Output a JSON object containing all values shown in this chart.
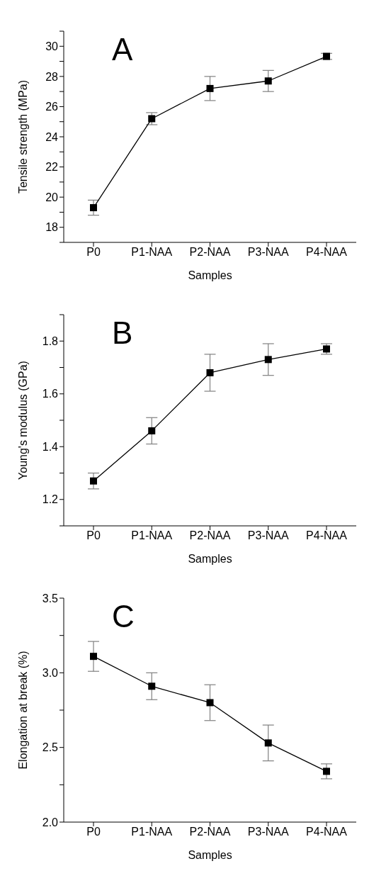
{
  "chart_data": [
    {
      "type": "line",
      "title": "A",
      "xlabel": "Samples",
      "ylabel": "Tensile strength (MPa)",
      "categories": [
        "P0",
        "P1-NAA",
        "P2-NAA",
        "P3-NAA",
        "P4-NAA"
      ],
      "series": [
        {
          "color": "#000000",
          "values": [
            19.3,
            25.2,
            27.2,
            27.7,
            29.33
          ],
          "errors": [
            0.5,
            0.4,
            0.8,
            0.7,
            0.2
          ]
        }
      ],
      "ylim": [
        17,
        31
      ],
      "yticks": [
        {
          "value": 17,
          "label": null
        },
        18,
        {
          "value": 19,
          "label": null
        },
        20,
        {
          "value": 21,
          "label": null
        },
        22,
        {
          "value": 23,
          "label": null
        },
        24,
        {
          "value": 25,
          "label": null
        },
        26,
        {
          "value": 27,
          "label": null
        },
        28,
        {
          "value": 29,
          "label": null
        },
        30,
        {
          "value": 31,
          "label": null
        }
      ],
      "marker": "square",
      "grid": false,
      "legend": false
    },
    {
      "type": "line",
      "title": "B",
      "xlabel": "Samples",
      "ylabel": "Young's modulus (GPa)",
      "categories": [
        "P0",
        "P1-NAA",
        "P2-NAA",
        "P3-NAA",
        "P4-NAA"
      ],
      "series": [
        {
          "color": "#000000",
          "values": [
            1.27,
            1.46,
            1.68,
            1.73,
            1.77
          ],
          "errors": [
            0.03,
            0.05,
            0.07,
            0.06,
            0.02
          ]
        }
      ],
      "ylim": [
        1.1,
        1.9
      ],
      "yticks": [
        {
          "value": 1.1,
          "label": null
        },
        {
          "value": 1.2,
          "label": "1.2"
        },
        {
          "value": 1.3,
          "label": null
        },
        {
          "value": 1.4,
          "label": "1.4"
        },
        {
          "value": 1.5,
          "label": null
        },
        {
          "value": 1.6,
          "label": "1.6"
        },
        {
          "value": 1.7,
          "label": null
        },
        {
          "value": 1.8,
          "label": "1.8"
        },
        {
          "value": 1.9,
          "label": null
        }
      ],
      "marker": "square",
      "grid": false,
      "legend": false
    },
    {
      "type": "line",
      "title": "C",
      "xlabel": "Samples",
      "ylabel": "Elongation at break (%)",
      "categories": [
        "P0",
        "P1-NAA",
        "P2-NAA",
        "P3-NAA",
        "P4-NAA"
      ],
      "series": [
        {
          "color": "#000000",
          "values": [
            3.11,
            2.91,
            2.8,
            2.53,
            2.34
          ],
          "errors": [
            0.1,
            0.09,
            0.12,
            0.12,
            0.05
          ]
        }
      ],
      "ylim": [
        2.0,
        3.5
      ],
      "yticks": [
        {
          "value": 2.0,
          "label": "2.0"
        },
        {
          "value": 2.25,
          "label": null
        },
        {
          "value": 2.5,
          "label": "2.5"
        },
        {
          "value": 2.75,
          "label": null
        },
        {
          "value": 3.0,
          "label": "3.0"
        },
        {
          "value": 3.25,
          "label": null
        },
        {
          "value": 3.5,
          "label": "3.5"
        }
      ],
      "marker": "square",
      "grid": false,
      "legend": false
    }
  ]
}
